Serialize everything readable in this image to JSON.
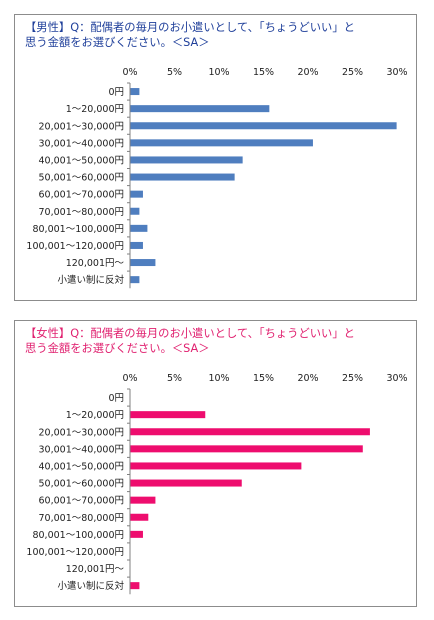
{
  "chart_data": [
    {
      "type": "bar",
      "orientation": "horizontal",
      "title_lines": [
        "【男性】Q：配偶者の毎月のお小遣いとして、「ちょうどいい」と",
        "思う金額をお選びください。＜SA＞"
      ],
      "title_color": "#1f3f9a",
      "bar_color": "#4f7ebf",
      "categories": [
        "0円",
        "1～20,000円",
        "20,001～30,000円",
        "30,001～40,000円",
        "40,001～50,000円",
        "50,001～60,000円",
        "60,001～70,000円",
        "70,001～80,000円",
        "80,001～100,000円",
        "100,001～120,000円",
        "120,001円～",
        "小遣い制に反対"
      ],
      "values": [
        1.0,
        15.6,
        29.9,
        20.5,
        12.6,
        11.7,
        1.4,
        1.0,
        1.9,
        1.4,
        2.8,
        1.0
      ],
      "xlim": [
        0,
        30
      ],
      "xticks": [
        "0%",
        "5%",
        "10%",
        "15%",
        "20%",
        "25%",
        "30%"
      ],
      "grid": false,
      "legend": "none"
    },
    {
      "type": "bar",
      "orientation": "horizontal",
      "title_lines": [
        "【女性】Q：配偶者の毎月のお小遣いとして、「ちょうどいい」と",
        "思う金額をお選びください。＜SA＞"
      ],
      "title_color": "#e0206f",
      "bar_color": "#ee0d6e",
      "categories": [
        "0円",
        "1～20,000円",
        "20,001～30,000円",
        "30,001～40,000円",
        "40,001～50,000円",
        "50,001～60,000円",
        "60,001～70,000円",
        "70,001～80,000円",
        "80,001～100,000円",
        "100,001～120,000円",
        "120,001円～",
        "小遣い制に反対"
      ],
      "values": [
        0,
        8.4,
        26.9,
        26.1,
        19.2,
        12.5,
        2.8,
        2.0,
        1.4,
        0,
        0,
        1.0
      ],
      "xlim": [
        0,
        30
      ],
      "xticks": [
        "0%",
        "5%",
        "10%",
        "15%",
        "20%",
        "25%",
        "30%"
      ],
      "grid": false,
      "legend": "none"
    }
  ]
}
